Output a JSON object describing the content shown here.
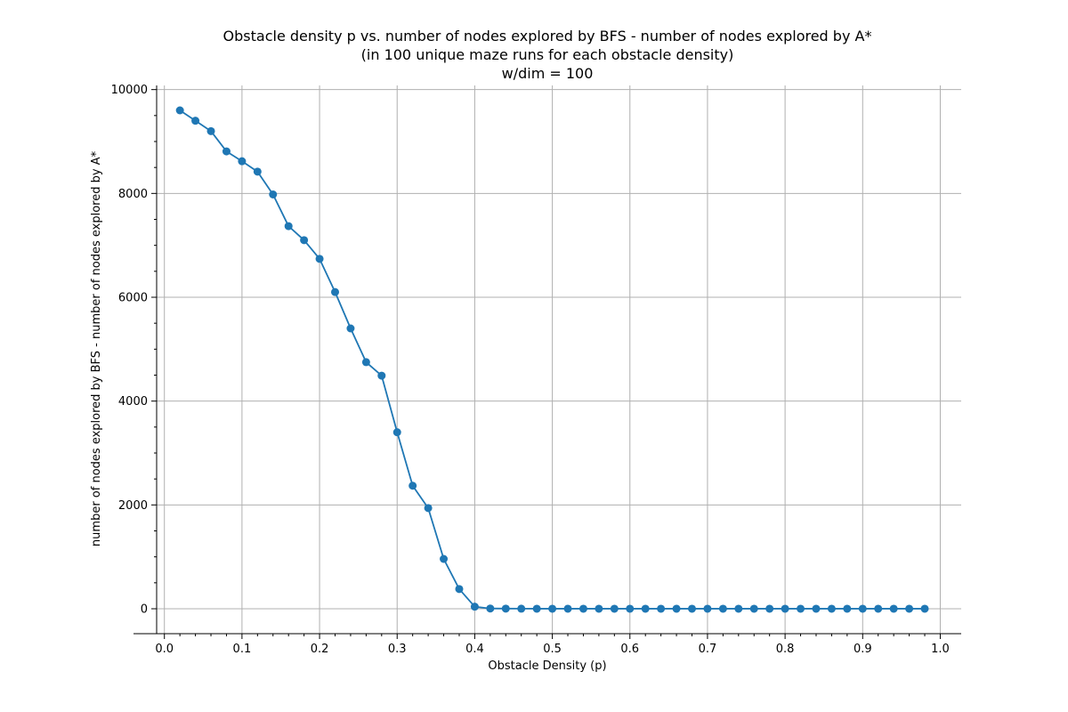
{
  "chart_data": {
    "type": "line",
    "title_lines": [
      "Obstacle density p vs. number of nodes explored by BFS - number of nodes explored by A*",
      "(in 100 unique maze runs for each obstacle density)",
      "w/dim = 100"
    ],
    "xlabel": "Obstacle Density (p)",
    "ylabel": "number of nodes explored by BFS - number of nodes explored by A*",
    "xlim": [
      -0.01,
      1.027
    ],
    "ylim": [
      -480,
      10080
    ],
    "xticks": [
      0.0,
      0.1,
      0.2,
      0.3,
      0.4,
      0.5,
      0.6,
      0.7,
      0.8,
      0.9,
      1.0
    ],
    "xtick_labels": [
      "0.0",
      "0.1",
      "0.2",
      "0.3",
      "0.4",
      "0.5",
      "0.6",
      "0.7",
      "0.8",
      "0.9",
      "1.0"
    ],
    "yticks": [
      0,
      2000,
      4000,
      6000,
      8000,
      10000
    ],
    "ytick_labels": [
      "0",
      "2000",
      "4000",
      "6000",
      "8000",
      "10000"
    ],
    "grid": true,
    "series": [
      {
        "color": "#1f77b4",
        "marker": "circle",
        "x": [
          0.02,
          0.04,
          0.06,
          0.08,
          0.1,
          0.12,
          0.14,
          0.16,
          0.18,
          0.2,
          0.22,
          0.24,
          0.26,
          0.28,
          0.3,
          0.32,
          0.34,
          0.36,
          0.38,
          0.4,
          0.42,
          0.44,
          0.46,
          0.48,
          0.5,
          0.52,
          0.54,
          0.56,
          0.58,
          0.6,
          0.62,
          0.64,
          0.66,
          0.68,
          0.7,
          0.72,
          0.74,
          0.76,
          0.78,
          0.8,
          0.82,
          0.84,
          0.86,
          0.88,
          0.9,
          0.92,
          0.94,
          0.96,
          0.98
        ],
        "y": [
          9600,
          9400,
          9200,
          8810,
          8620,
          8420,
          7980,
          7370,
          7100,
          6740,
          6100,
          5400,
          4750,
          4490,
          3400,
          2370,
          1940,
          960,
          380,
          40,
          5,
          3,
          2,
          1,
          1,
          1,
          1,
          1,
          1,
          1,
          1,
          1,
          1,
          1,
          1,
          1,
          1,
          1,
          1,
          1,
          1,
          1,
          1,
          1,
          1,
          1,
          1,
          1,
          1
        ]
      }
    ]
  }
}
